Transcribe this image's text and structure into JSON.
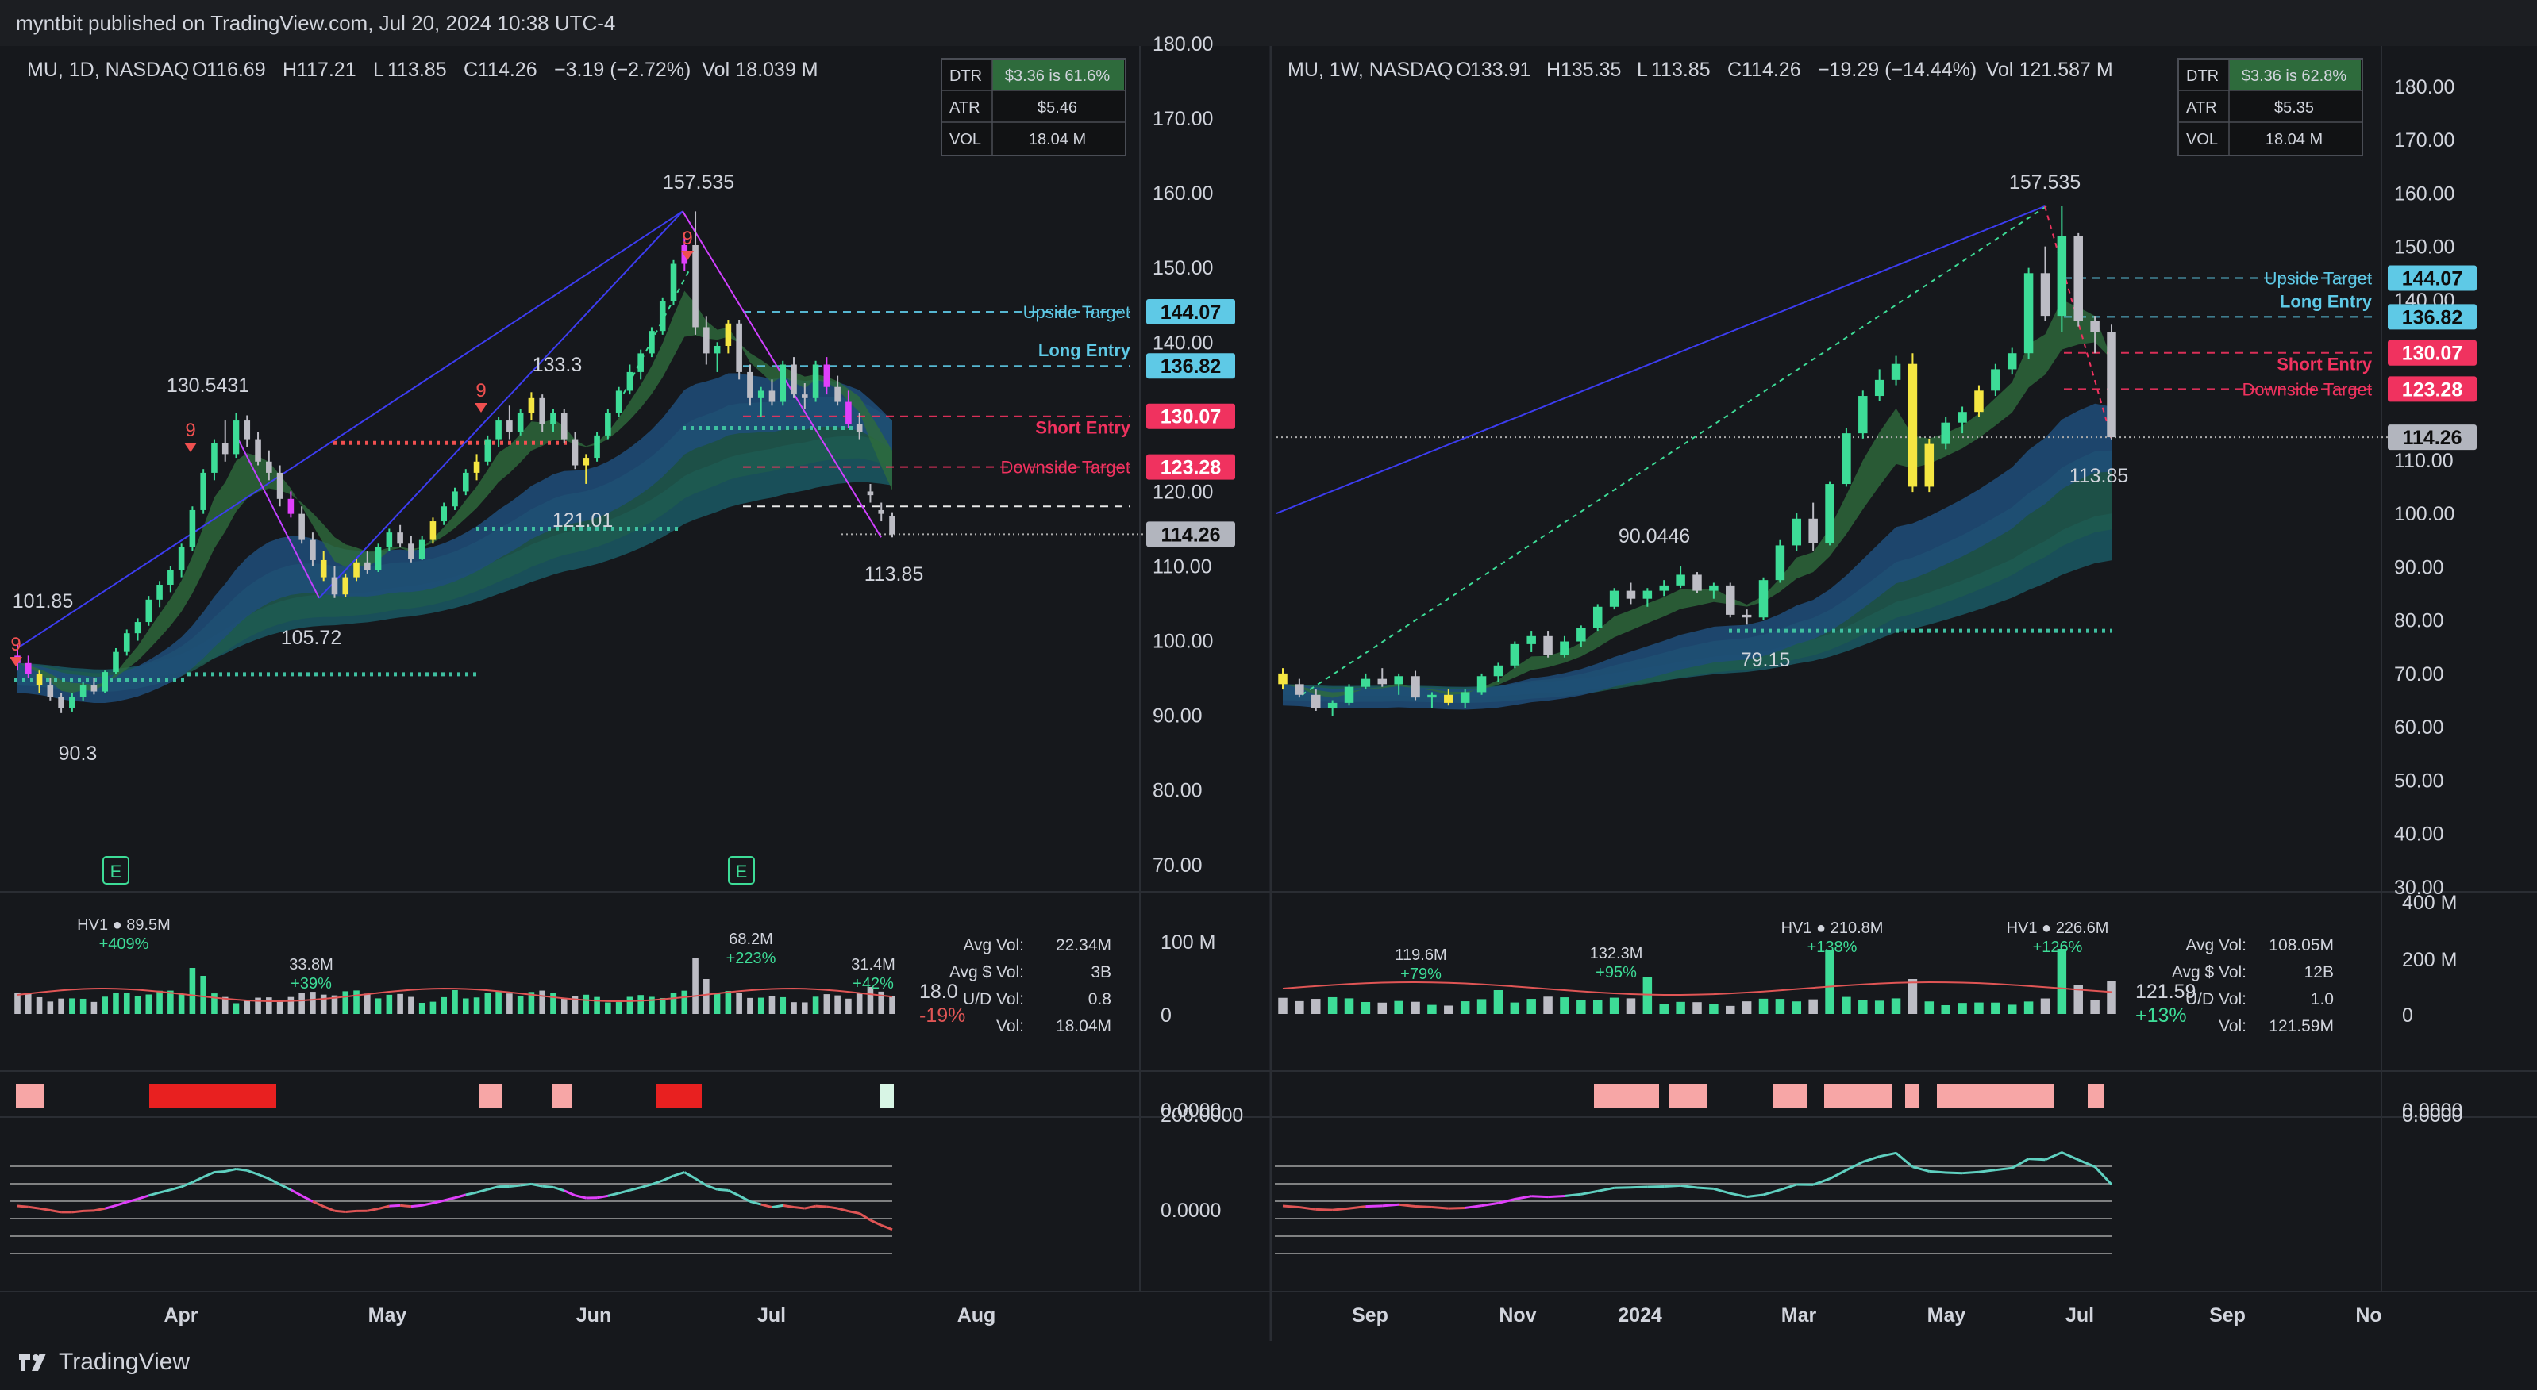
{
  "header": {
    "published": "myntbit published on TradingView.com, Jul 20, 2024 10:38 UTC-4"
  },
  "footer": {
    "brand": "TradingView"
  },
  "colors": {
    "up": "#3ddc97",
    "down": "#bcbcc4",
    "ema_fast": "#2e6b3c",
    "ribbon_blue": "#1e4d7a",
    "ribbon_teal": "#1e5a4f",
    "long_ema": "#1a5560",
    "cyan": "#5ec9e6",
    "pink": "#f0325f",
    "trend": "#3c3cf0",
    "magenta": "#e040fb"
  },
  "chart_data": [
    {
      "type": "candlestick",
      "id": "daily",
      "title": "MU, 1D, NASDAQ",
      "ohlc": {
        "o_label": "O",
        "o": "116.69",
        "h_label": "H",
        "h": "117.21",
        "l_label": "L",
        "l": "113.85",
        "c_label": "C",
        "c": "114.26",
        "change": "−3.19 (−2.72%)",
        "vol_label": "Vol",
        "vol": "18.039 M"
      },
      "stats": [
        {
          "k": "DTR",
          "v": "$3.36 is 61.6%"
        },
        {
          "k": "ATR",
          "v": "$5.46"
        },
        {
          "k": "VOL",
          "v": "18.04 M"
        }
      ],
      "y_ticks": [
        "180.00",
        "170.00",
        "160.00",
        "150.00",
        "140.00",
        "120.00",
        "110.00",
        "100.00",
        "90.00",
        "80.00",
        "70.00"
      ],
      "x_ticks": [
        "Apr",
        "May",
        "Jun",
        "Jul",
        "Aug"
      ],
      "price_tags": [
        {
          "v": "144.07",
          "kind": "cyan"
        },
        {
          "v": "136.82",
          "kind": "cyan"
        },
        {
          "v": "130.07",
          "kind": "pink"
        },
        {
          "v": "123.28",
          "kind": "pink"
        },
        {
          "v": "114.26",
          "kind": "grey"
        }
      ],
      "levels": [
        {
          "label": "Upside Target",
          "v": 144.07
        },
        {
          "label": "Long Entry",
          "v": 136.82
        },
        {
          "label": "Short Entry",
          "v": 130.07
        },
        {
          "label": "Downside Target",
          "v": 123.28
        },
        {
          "label": "",
          "v": 118.0
        }
      ],
      "annotations": [
        "157.535",
        "133.3",
        "130.5431",
        "121.01",
        "105.72",
        "101.85",
        "90.3",
        "113.85"
      ],
      "markers": [
        "9",
        "9",
        "9",
        "9"
      ],
      "earnings": [
        "E",
        "E"
      ],
      "volume": {
        "labels": [
          {
            "a": "HV1 ● 89.5M",
            "b": "+409%"
          },
          {
            "a": "33.8M",
            "b": "+39%"
          },
          {
            "a": "68.2M",
            "b": "+223%"
          },
          {
            "a": "31.4M",
            "b": "+42%"
          }
        ],
        "stats": [
          {
            "k": "Avg Vol:",
            "v": "22.34M"
          },
          {
            "k": "Avg $ Vol:",
            "v": "3B"
          },
          {
            "k": "U/D Vol:",
            "v": "0.8"
          },
          {
            "k": "Vol:",
            "v": "18.04M"
          }
        ],
        "axis": [
          "100 M",
          "0"
        ],
        "last": "18.0",
        "last_pct": "-19%"
      },
      "osc_axis": [
        "200.0000",
        "0.0000"
      ],
      "dots_axis": [
        "0.0000"
      ],
      "candles": [
        [
          98,
          99.5,
          96,
          97
        ],
        [
          97,
          98,
          95,
          95.5
        ],
        [
          95.5,
          96,
          93,
          94
        ],
        [
          94,
          95,
          92,
          92.5
        ],
        [
          92.5,
          93,
          90.3,
          91
        ],
        [
          91,
          93,
          90.5,
          92.5
        ],
        [
          92.5,
          94.5,
          92,
          94
        ],
        [
          94,
          95,
          92.8,
          93.2
        ],
        [
          93.2,
          96,
          93,
          95.8
        ],
        [
          95.8,
          99,
          95.5,
          98.5
        ],
        [
          98.5,
          101.5,
          98,
          101
        ],
        [
          101,
          103,
          100,
          102.5
        ],
        [
          102.5,
          106,
          102,
          105.5
        ],
        [
          105.5,
          108,
          104.5,
          107.5
        ],
        [
          107.5,
          110,
          106.5,
          109.5
        ],
        [
          109.5,
          113,
          108.5,
          112.5
        ],
        [
          112.5,
          118,
          112,
          117.5
        ],
        [
          117.5,
          123,
          117,
          122.5
        ],
        [
          122.5,
          127,
          121.5,
          126.5
        ],
        [
          126.5,
          129.5,
          124,
          125
        ],
        [
          125,
          130.5,
          124.5,
          129.5
        ],
        [
          129.5,
          130.2,
          126,
          127
        ],
        [
          127,
          128,
          123.5,
          124
        ],
        [
          124,
          125.5,
          121.5,
          122.5
        ],
        [
          122.5,
          123.5,
          118,
          119
        ],
        [
          119,
          120,
          116.5,
          117
        ],
        [
          117,
          118,
          113,
          113.5
        ],
        [
          113.5,
          114.5,
          110,
          110.8
        ],
        [
          110.8,
          112,
          108,
          108.5
        ],
        [
          108.5,
          110,
          105.72,
          106.2
        ],
        [
          106.2,
          109,
          105.9,
          108.5
        ],
        [
          108.5,
          111,
          108,
          110.5
        ],
        [
          110.5,
          112,
          109,
          109.5
        ],
        [
          109.5,
          113,
          109.2,
          112.5
        ],
        [
          112.5,
          115,
          112,
          114.5
        ],
        [
          114.5,
          115.5,
          112.5,
          113
        ],
        [
          113,
          114,
          110.5,
          111
        ],
        [
          111,
          114,
          110.8,
          113.5
        ],
        [
          113.5,
          116.5,
          113,
          116
        ],
        [
          116,
          118.5,
          115.5,
          118
        ],
        [
          118,
          120.5,
          117.5,
          120
        ],
        [
          120,
          123,
          119.5,
          122.5
        ],
        [
          122.5,
          125,
          121.5,
          124
        ],
        [
          124,
          127.5,
          123.5,
          127
        ],
        [
          127,
          130,
          126,
          129.5
        ],
        [
          129.5,
          131.5,
          127,
          128
        ],
        [
          128,
          131,
          127.5,
          130.5
        ],
        [
          130.5,
          133.3,
          129.5,
          132.5
        ],
        [
          132.5,
          133,
          128,
          129
        ],
        [
          129,
          131,
          128,
          130.5
        ],
        [
          130.5,
          131,
          126.5,
          127
        ],
        [
          127,
          128,
          123,
          123.5
        ],
        [
          123.5,
          125,
          121.01,
          124.5
        ],
        [
          124.5,
          128,
          124,
          127.5
        ],
        [
          127.5,
          131,
          127,
          130.5
        ],
        [
          130.5,
          134,
          130,
          133.5
        ],
        [
          133.5,
          137,
          133,
          136
        ],
        [
          136,
          139,
          135,
          138.5
        ],
        [
          138.5,
          142,
          138,
          141.5
        ],
        [
          141.5,
          146,
          141,
          145.5
        ],
        [
          145.5,
          151,
          145,
          150.5
        ],
        [
          150.5,
          154,
          149.5,
          153
        ],
        [
          153,
          157.535,
          141,
          142
        ],
        [
          142,
          143.5,
          137,
          138.5
        ],
        [
          138.5,
          140,
          136,
          139.5
        ],
        [
          139.5,
          143,
          138.5,
          142.5
        ],
        [
          142.5,
          143,
          135,
          136
        ],
        [
          136,
          137,
          131.5,
          132.5
        ],
        [
          132.5,
          134,
          130,
          133.5
        ],
        [
          133.5,
          135,
          131.5,
          132
        ],
        [
          132,
          137.5,
          131.5,
          137
        ],
        [
          137,
          138,
          132.5,
          133
        ],
        [
          133,
          134.5,
          131,
          132.5
        ],
        [
          132.5,
          137.5,
          132,
          137
        ],
        [
          137,
          138,
          133,
          134
        ],
        [
          134,
          135.5,
          131.5,
          132
        ],
        [
          132,
          133.5,
          128.5,
          129
        ],
        [
          129,
          130.5,
          127,
          128
        ],
        [
          120,
          121,
          118.5,
          119.5
        ],
        [
          117.5,
          118.5,
          116,
          117
        ],
        [
          116.69,
          117.21,
          113.85,
          114.26
        ]
      ]
    },
    {
      "type": "candlestick",
      "id": "weekly",
      "title": "MU, 1W, NASDAQ",
      "ohlc": {
        "o_label": "O",
        "o": "133.91",
        "h_label": "H",
        "h": "135.35",
        "l_label": "L",
        "l": "113.85",
        "c_label": "C",
        "c": "114.26",
        "change": "−19.29 (−14.44%)",
        "vol_label": "Vol",
        "vol": "121.587 M"
      },
      "stats": [
        {
          "k": "DTR",
          "v": "$3.36 is 62.8%"
        },
        {
          "k": "ATR",
          "v": "$5.35"
        },
        {
          "k": "VOL",
          "v": "18.04 M"
        }
      ],
      "y_ticks": [
        "180.00",
        "170.00",
        "160.00",
        "150.00",
        "140.00",
        "110.00",
        "100.00",
        "90.00",
        "80.00",
        "70.00",
        "60.00",
        "50.00",
        "40.00",
        "30.00"
      ],
      "x_ticks": [
        "Sep",
        "Nov",
        "2024",
        "Mar",
        "May",
        "Jul",
        "Sep",
        "No"
      ],
      "price_tags": [
        {
          "v": "144.07",
          "kind": "cyan"
        },
        {
          "v": "136.82",
          "kind": "cyan"
        },
        {
          "v": "130.07",
          "kind": "pink"
        },
        {
          "v": "123.28",
          "kind": "pink"
        },
        {
          "v": "114.26",
          "kind": "grey"
        }
      ],
      "levels": [
        {
          "label": "Upside Target",
          "v": 144.07
        },
        {
          "label": "Long Entry",
          "v": 136.82
        },
        {
          "label": "Short Entry",
          "v": 130.07
        },
        {
          "label": "Downside Target",
          "v": 123.28
        }
      ],
      "annotations": [
        "157.535",
        "90.0446",
        "79.15",
        "113.85"
      ],
      "volume": {
        "labels": [
          {
            "a": "119.6M",
            "b": "+79%"
          },
          {
            "a": "132.3M",
            "b": "+95%"
          },
          {
            "a": "HV1 ● 210.8M",
            "b": "+138%"
          },
          {
            "a": "HV1 ● 226.6M",
            "b": "+126%"
          }
        ],
        "stats": [
          {
            "k": "Avg Vol:",
            "v": "108.05M"
          },
          {
            "k": "Avg $ Vol:",
            "v": "12B"
          },
          {
            "k": "U/D Vol:",
            "v": "1.0"
          },
          {
            "k": "Vol:",
            "v": "121.59M"
          }
        ],
        "axis": [
          "400 M",
          "200 M",
          "0"
        ],
        "last": "121.59",
        "last_pct": "+13%"
      },
      "osc_axis": [
        "0.0000"
      ],
      "dots_axis": [
        "0.0000"
      ],
      "candles": [
        [
          70,
          71,
          67,
          68
        ],
        [
          68,
          69,
          65.5,
          66
        ],
        [
          66,
          67,
          63,
          63.5
        ],
        [
          63.5,
          65,
          62,
          64.5
        ],
        [
          64.5,
          68,
          64,
          67.5
        ],
        [
          67.5,
          70,
          67,
          69
        ],
        [
          69,
          71,
          67.5,
          68
        ],
        [
          68,
          70,
          66,
          69.5
        ],
        [
          69.5,
          70.5,
          65,
          65.5
        ],
        [
          65.5,
          66.5,
          63.5,
          66
        ],
        [
          66,
          67,
          64,
          64.5
        ],
        [
          64.5,
          67,
          63.5,
          66.5
        ],
        [
          66.5,
          70,
          66,
          69.5
        ],
        [
          69.5,
          72,
          68.5,
          71.5
        ],
        [
          71.5,
          76,
          71,
          75.5
        ],
        [
          75.5,
          78,
          74,
          77
        ],
        [
          77,
          78,
          73,
          73.5
        ],
        [
          73.5,
          77,
          73,
          76
        ],
        [
          76,
          79,
          75,
          78.5
        ],
        [
          78.5,
          83,
          78,
          82.5
        ],
        [
          82.5,
          86,
          82,
          85.5
        ],
        [
          85.5,
          87,
          83,
          84
        ],
        [
          84,
          86,
          82.5,
          85.5
        ],
        [
          85.5,
          87.5,
          84.5,
          86.5
        ],
        [
          86.5,
          90.0446,
          86,
          88.5
        ],
        [
          88.5,
          89,
          85,
          85.5
        ],
        [
          85.5,
          87,
          84,
          86.5
        ],
        [
          86.5,
          87,
          80.5,
          81
        ],
        [
          81,
          82,
          79.15,
          80.5
        ],
        [
          80.5,
          88,
          80,
          87.5
        ],
        [
          87.5,
          95,
          87,
          94
        ],
        [
          94,
          100,
          93,
          99
        ],
        [
          99,
          102,
          93,
          94.5
        ],
        [
          94.5,
          106,
          94,
          105.5
        ],
        [
          105.5,
          116,
          105,
          115
        ],
        [
          115,
          123,
          114,
          122
        ],
        [
          122,
          127,
          121,
          125
        ],
        [
          125,
          129.5,
          124,
          128
        ],
        [
          128,
          130,
          104,
          105
        ],
        [
          105,
          114,
          104,
          113
        ],
        [
          113,
          118,
          112,
          117
        ],
        [
          117,
          120,
          115,
          119
        ],
        [
          119,
          124,
          118,
          123
        ],
        [
          123,
          128,
          122,
          127
        ],
        [
          127,
          131,
          126,
          130
        ],
        [
          130,
          146,
          129,
          145
        ],
        [
          145,
          150,
          136,
          137
        ],
        [
          137,
          157.535,
          134,
          152
        ],
        [
          152,
          152.5,
          135,
          136
        ],
        [
          136,
          137,
          130,
          134
        ],
        [
          133.91,
          135.35,
          113.85,
          114.26
        ]
      ]
    }
  ]
}
